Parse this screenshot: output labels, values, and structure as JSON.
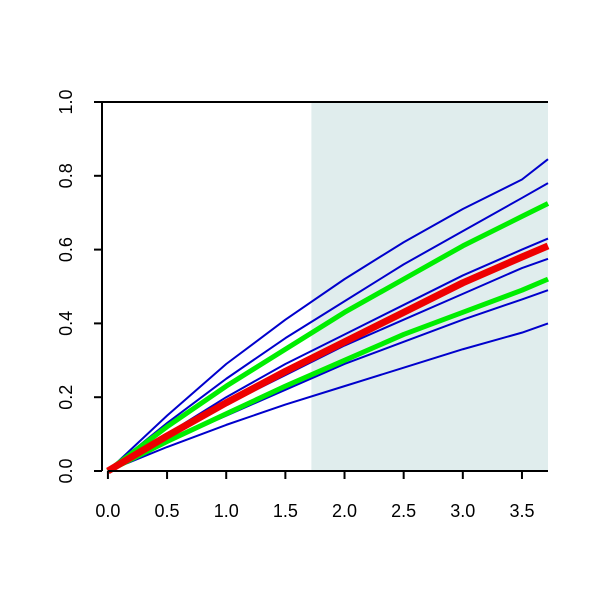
{
  "chart_data": {
    "type": "line",
    "title": "",
    "xlabel": "",
    "ylabel": "",
    "xlim": [
      -0.05,
      3.72
    ],
    "ylim": [
      0,
      1.0
    ],
    "x_ticks": [
      0.0,
      0.5,
      1.0,
      1.5,
      2.0,
      2.5,
      3.0,
      3.5
    ],
    "x_tick_labels": [
      "0.0",
      "0.5",
      "1.0",
      "1.5",
      "2.0",
      "2.5",
      "3.0",
      "3.5"
    ],
    "y_ticks": [
      0.0,
      0.2,
      0.4,
      0.6,
      0.8,
      1.0
    ],
    "y_tick_labels": [
      "0.0",
      "0.2",
      "0.4",
      "0.6",
      "0.8",
      "1.0"
    ],
    "shaded_region": {
      "x": [
        1.72,
        3.72
      ],
      "color": "#e0eded"
    },
    "grid": false,
    "legend": "none",
    "series": [
      {
        "color": "#0000cc",
        "width": "thin",
        "x": [
          0,
          0.5,
          1.0,
          1.5,
          2.0,
          2.5,
          3.0,
          3.5,
          3.72
        ],
        "y": [
          0,
          0.15,
          0.29,
          0.41,
          0.52,
          0.62,
          0.71,
          0.79,
          0.845
        ]
      },
      {
        "color": "#0000cc",
        "width": "thin",
        "x": [
          0,
          0.5,
          1.0,
          1.5,
          2.0,
          2.5,
          3.0,
          3.5,
          3.72
        ],
        "y": [
          0,
          0.13,
          0.25,
          0.36,
          0.46,
          0.56,
          0.65,
          0.74,
          0.78
        ]
      },
      {
        "color": "#0000cc",
        "width": "thin",
        "x": [
          0,
          0.5,
          1.0,
          1.5,
          2.0,
          2.5,
          3.0,
          3.5,
          3.72
        ],
        "y": [
          0,
          0.1,
          0.2,
          0.29,
          0.37,
          0.45,
          0.53,
          0.6,
          0.63
        ]
      },
      {
        "color": "#0000cc",
        "width": "thin",
        "x": [
          0,
          0.5,
          1.0,
          1.5,
          2.0,
          2.5,
          3.0,
          3.5,
          3.72
        ],
        "y": [
          0,
          0.09,
          0.18,
          0.26,
          0.34,
          0.41,
          0.48,
          0.55,
          0.575
        ]
      },
      {
        "color": "#0000cc",
        "width": "thin",
        "x": [
          0,
          0.5,
          1.0,
          1.5,
          2.0,
          2.5,
          3.0,
          3.5,
          3.72
        ],
        "y": [
          0,
          0.08,
          0.15,
          0.22,
          0.29,
          0.35,
          0.41,
          0.465,
          0.49
        ]
      },
      {
        "color": "#0000cc",
        "width": "thin",
        "x": [
          0,
          0.5,
          1.0,
          1.5,
          2.0,
          2.5,
          3.0,
          3.5,
          3.72
        ],
        "y": [
          0,
          0.065,
          0.125,
          0.18,
          0.23,
          0.28,
          0.33,
          0.375,
          0.4
        ]
      },
      {
        "color": "#00ee00",
        "width": "thick",
        "x": [
          0,
          0.5,
          1.0,
          1.5,
          2.0,
          2.5,
          3.0,
          3.5,
          3.72
        ],
        "y": [
          0,
          0.12,
          0.23,
          0.33,
          0.43,
          0.52,
          0.61,
          0.69,
          0.725
        ]
      },
      {
        "color": "#00ee00",
        "width": "thick",
        "x": [
          0,
          0.5,
          1.0,
          1.5,
          2.0,
          2.5,
          3.0,
          3.5,
          3.72
        ],
        "y": [
          0,
          0.08,
          0.155,
          0.23,
          0.3,
          0.37,
          0.43,
          0.49,
          0.52
        ]
      },
      {
        "color": "#ee0000",
        "width": "thicker",
        "x": [
          0,
          0.5,
          1.0,
          1.5,
          2.0,
          2.5,
          3.0,
          3.5,
          3.72
        ],
        "y": [
          0,
          0.095,
          0.185,
          0.27,
          0.35,
          0.43,
          0.51,
          0.58,
          0.61
        ]
      }
    ]
  }
}
